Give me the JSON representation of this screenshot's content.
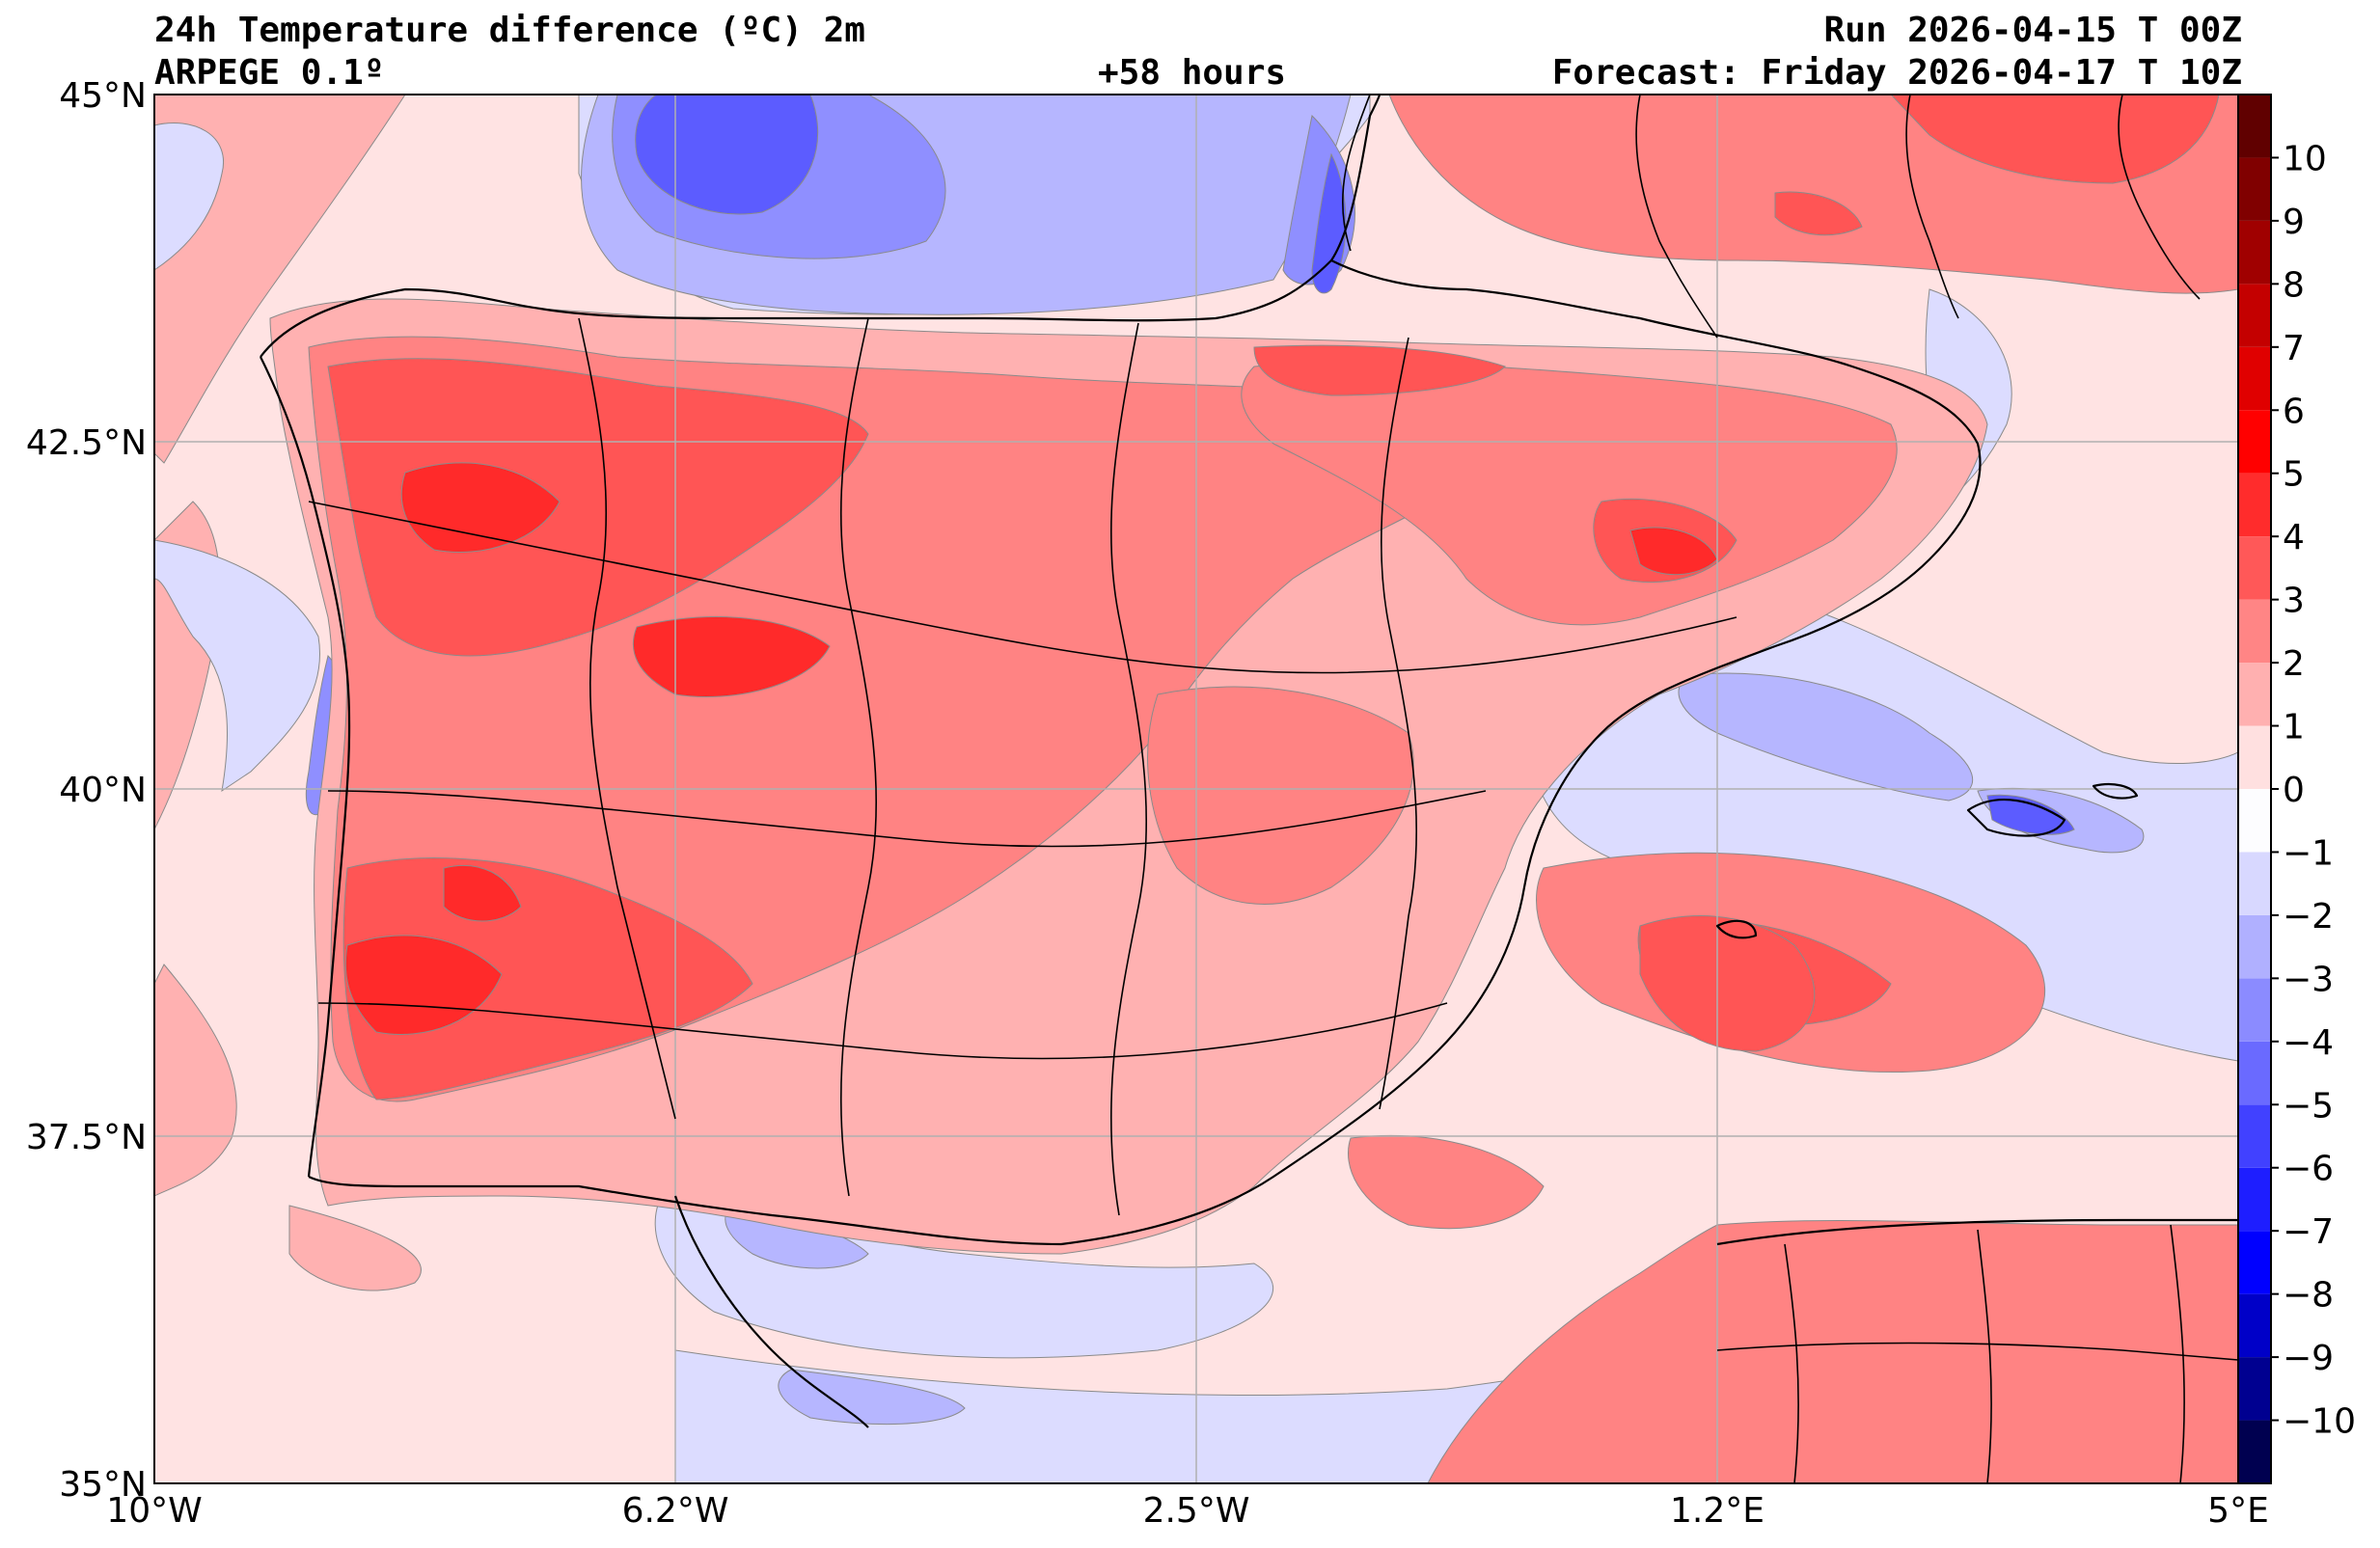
{
  "header": {
    "title": "24h Temperature difference (ºC) 2m",
    "model": "ARPEGE 0.1º",
    "lead_time": "+58 hours",
    "run": "Run 2026-04-15 T 00Z",
    "forecast": "Forecast: Friday 2026-04-17 T 10Z"
  },
  "axes": {
    "lat_ticks": [
      {
        "value": 45.0,
        "label": "45°N"
      },
      {
        "value": 42.5,
        "label": "42.5°N"
      },
      {
        "value": 40.0,
        "label": "40°N"
      },
      {
        "value": 37.5,
        "label": "37.5°N"
      },
      {
        "value": 35.0,
        "label": "35°N"
      }
    ],
    "lon_ticks": [
      {
        "value": -10.0,
        "label": "10°W"
      },
      {
        "value": -6.25,
        "label": "6.2°W"
      },
      {
        "value": -2.5,
        "label": "2.5°W"
      },
      {
        "value": 1.25,
        "label": "1.2°E"
      },
      {
        "value": 5.0,
        "label": "5°E"
      }
    ],
    "lat_range": [
      35,
      45
    ],
    "lon_range": [
      -10,
      5
    ]
  },
  "colorbar": {
    "levels": [
      -11,
      -10,
      -9,
      -8,
      -7,
      -6,
      -5,
      -4,
      -3,
      -2,
      -1,
      0,
      1,
      2,
      3,
      4,
      5,
      6,
      7,
      8,
      9,
      10,
      11
    ],
    "labels": [
      "10",
      "9",
      "8",
      "7",
      "6",
      "5",
      "4",
      "3",
      "2",
      "1",
      "0",
      "−1",
      "−2",
      "−3",
      "−4",
      "−5",
      "−6",
      "−7",
      "−8",
      "−9",
      "−10"
    ],
    "label_values": [
      10,
      9,
      8,
      7,
      6,
      5,
      4,
      3,
      2,
      1,
      0,
      -1,
      -2,
      -3,
      -4,
      -5,
      -6,
      -7,
      -8,
      -9,
      -10
    ],
    "colors": [
      "#000050",
      "#000090",
      "#0000c8",
      "#0000ff",
      "#1e1eff",
      "#4141ff",
      "#6a6aff",
      "#8b8bff",
      "#b0b0ff",
      "#d8d8ff",
      "#fdfdff",
      "#ffe0e0",
      "#ffb0b0",
      "#ff8585",
      "#ff5858",
      "#ff2c2c",
      "#ff0000",
      "#e00000",
      "#c40000",
      "#a00000",
      "#800000",
      "#600000"
    ]
  },
  "map_colors": {
    "sea_base": "#ffe3e3",
    "light_red": "#ffb1b1",
    "med_red": "#ff8383",
    "strong_red": "#ff5555",
    "hot_red": "#ff2a2a",
    "light_blue": "#dcdcff",
    "blue1": "#b6b6ff",
    "blue2": "#8f8fff",
    "blue3": "#5c5cff",
    "blue4": "#2828ff"
  }
}
